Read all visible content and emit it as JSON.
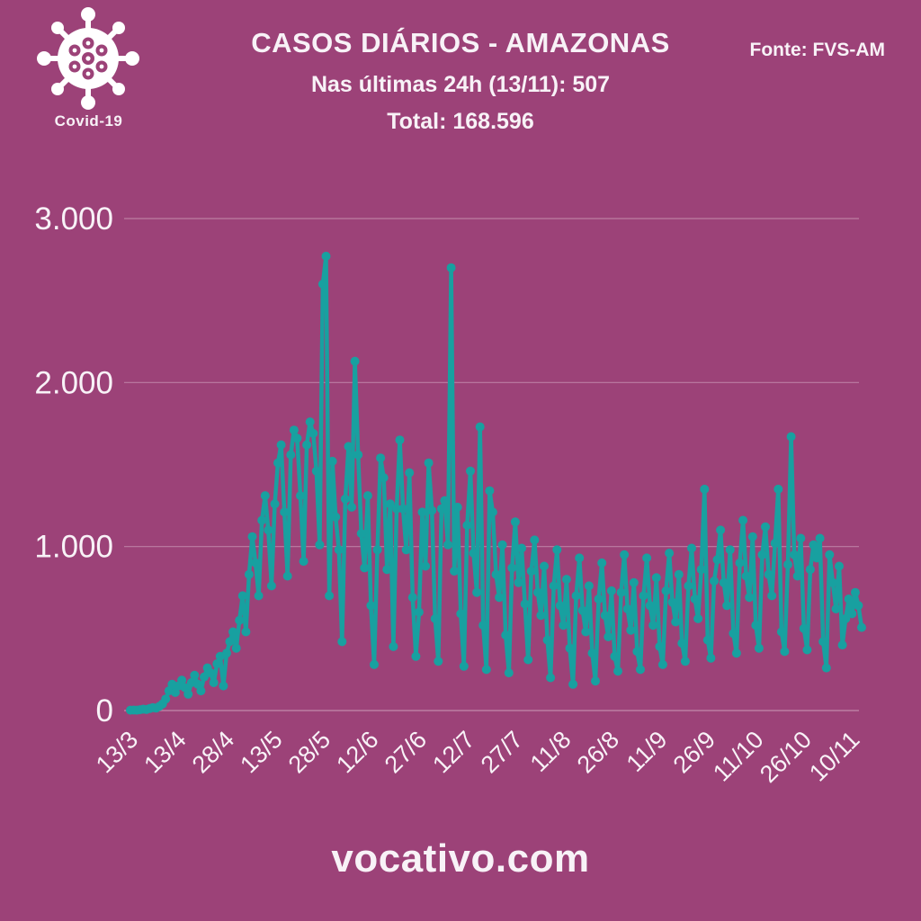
{
  "header": {
    "badge_label": "Covid-19",
    "title": "CASOS DIÁRIOS - AMAZONAS",
    "subtitle": "Nas últimas 24h (13/11): 507",
    "total": "Total: 168.596",
    "source": "Fonte: FVS-AM"
  },
  "footer": {
    "site": "vocativo.com"
  },
  "colors": {
    "background": "#9C4278",
    "line": "#18A0A0",
    "text": "#F8F2F7",
    "grid": "rgba(255,255,255,0.32)"
  },
  "chart_data": {
    "type": "line",
    "title": "CASOS DIÁRIOS - AMAZONAS",
    "xlabel": "",
    "ylabel": "",
    "ylim": [
      0,
      3000
    ],
    "y_ticks": [
      0,
      1000,
      2000,
      3000
    ],
    "y_tick_labels": [
      "0",
      "1.000",
      "2.000",
      "3.000"
    ],
    "x_tick_labels": [
      "13/3",
      "13/4",
      "28/4",
      "13/5",
      "28/5",
      "12/6",
      "27/6",
      "12/7",
      "27/7",
      "11/8",
      "26/8",
      "11/9",
      "26/9",
      "11/10",
      "26/10",
      "10/11"
    ],
    "x_tick_indices": [
      0,
      15,
      30,
      45,
      60,
      75,
      90,
      105,
      120,
      135,
      150,
      165,
      180,
      195,
      210,
      225
    ],
    "grid": true,
    "legend": false,
    "last_value_date": "13/11",
    "last_value": 507,
    "series": [
      {
        "name": "Casos diários",
        "values": [
          2,
          3,
          2,
          5,
          8,
          6,
          12,
          18,
          15,
          25,
          40,
          70,
          120,
          160,
          110,
          150,
          185,
          140,
          100,
          170,
          215,
          160,
          120,
          205,
          260,
          230,
          170,
          285,
          330,
          150,
          350,
          420,
          480,
          380,
          550,
          700,
          480,
          830,
          1060,
          900,
          700,
          1160,
          1310,
          1100,
          760,
          1260,
          1510,
          1620,
          1210,
          820,
          1560,
          1710,
          1660,
          1310,
          910,
          1620,
          1760,
          1690,
          1460,
          1010,
          2600,
          2770,
          700,
          1520,
          1180,
          980,
          420,
          1290,
          1610,
          1240,
          2130,
          1560,
          1080,
          870,
          1310,
          640,
          280,
          980,
          1540,
          1420,
          860,
          1260,
          390,
          1230,
          1650,
          1230,
          980,
          1450,
          690,
          330,
          600,
          1210,
          880,
          1510,
          1220,
          560,
          300,
          1230,
          1280,
          1010,
          2700,
          850,
          1240,
          590,
          270,
          1130,
          1460,
          960,
          720,
          1730,
          520,
          250,
          1340,
          1210,
          830,
          690,
          1010,
          460,
          230,
          870,
          1150,
          780,
          990,
          650,
          310,
          850,
          1040,
          720,
          580,
          880,
          430,
          200,
          760,
          980,
          640,
          520,
          800,
          380,
          160,
          700,
          930,
          610,
          480,
          760,
          350,
          180,
          680,
          900,
          580,
          450,
          730,
          330,
          240,
          720,
          950,
          620,
          490,
          780,
          360,
          250,
          700,
          930,
          640,
          520,
          810,
          390,
          280,
          730,
          960,
          660,
          540,
          830,
          410,
          300,
          760,
          990,
          680,
          560,
          860,
          1350,
          430,
          320,
          790,
          920,
          1100,
          780,
          640,
          980,
          470,
          350,
          900,
          1160,
          820,
          690,
          1060,
          520,
          380,
          950,
          1120,
          830,
          700,
          1020,
          1350,
          480,
          360,
          890,
          1670,
          950,
          820,
          1050,
          500,
          370,
          860,
          1010,
          930,
          1050,
          420,
          260,
          950,
          780,
          620,
          880,
          400,
          560,
          680,
          590,
          720,
          640,
          507
        ]
      }
    ]
  }
}
